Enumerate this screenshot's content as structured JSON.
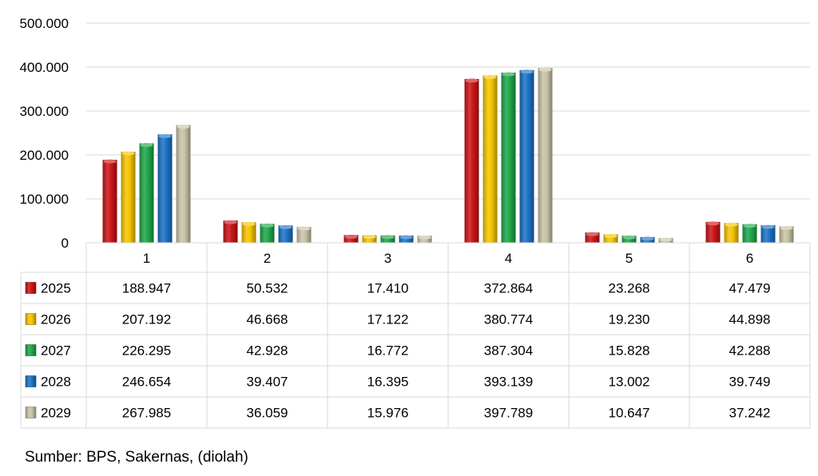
{
  "chart_data": {
    "type": "bar",
    "categories": [
      "1",
      "2",
      "3",
      "4",
      "5",
      "6"
    ],
    "series": [
      {
        "name": "2025",
        "color": "#cc1417",
        "values": [
          188.947,
          50.532,
          17.41,
          372.864,
          23.268,
          47.479
        ],
        "labels": [
          "188.947",
          "50.532",
          "17.410",
          "372.864",
          "23.268",
          "47.479"
        ]
      },
      {
        "name": "2026",
        "color": "#f5c400",
        "values": [
          207.192,
          46.668,
          17.122,
          380.774,
          19.23,
          44.898
        ],
        "labels": [
          "207.192",
          "46.668",
          "17.122",
          "380.774",
          "19.230",
          "44.898"
        ]
      },
      {
        "name": "2027",
        "color": "#1fa74a",
        "values": [
          226.295,
          42.928,
          16.772,
          387.304,
          15.828,
          42.288
        ],
        "labels": [
          "226.295",
          "42.928",
          "16.772",
          "387.304",
          "15.828",
          "42.288"
        ]
      },
      {
        "name": "2028",
        "color": "#1b73c7",
        "values": [
          246.654,
          39.407,
          16.395,
          393.139,
          13.002,
          39.749
        ],
        "labels": [
          "246.654",
          "39.407",
          "16.395",
          "393.139",
          "13.002",
          "39.749"
        ]
      },
      {
        "name": "2029",
        "color": "#c9c3a6",
        "values": [
          267.985,
          36.059,
          15.976,
          397.789,
          10.647,
          37.242
        ],
        "labels": [
          "267.985",
          "36.059",
          "15.976",
          "397.789",
          "10.647",
          "37.242"
        ]
      }
    ],
    "ylim": [
      0,
      500
    ],
    "yticks": [
      0,
      100,
      200,
      300,
      400,
      500
    ],
    "ytick_labels": [
      "0",
      "100.000",
      "200.000",
      "300.000",
      "400.000",
      "500.000"
    ],
    "grid": true,
    "legend": "data-table"
  },
  "source_note": "Sumber: BPS, Sakernas, (diolah)"
}
